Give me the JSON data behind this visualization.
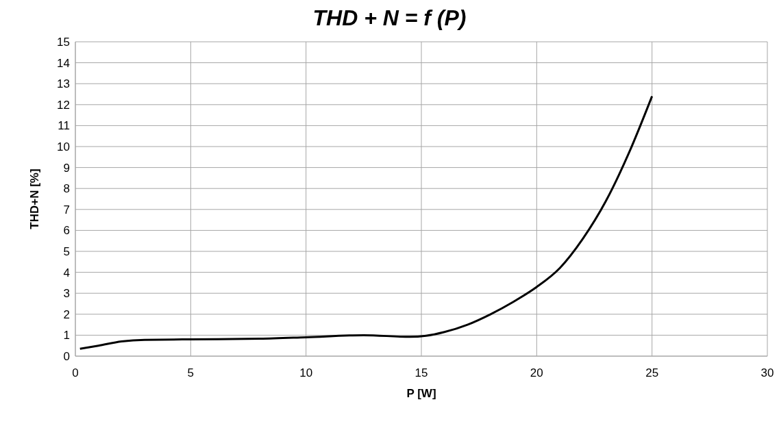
{
  "chart_data": {
    "type": "line",
    "title": "THD + N = f (P)",
    "xlabel": "P [W]",
    "ylabel": "THD+N [%]",
    "x": [
      0.2,
      1,
      2,
      3,
      5,
      8,
      10,
      12.5,
      14.5,
      15.2,
      16,
      17,
      18,
      19,
      20,
      21,
      22,
      23,
      24,
      25
    ],
    "series": [
      {
        "color": "#000000",
        "values": [
          0.35,
          0.5,
          0.7,
          0.78,
          0.8,
          0.83,
          0.9,
          1.0,
          0.92,
          0.97,
          1.15,
          1.5,
          2.0,
          2.6,
          3.3,
          4.2,
          5.6,
          7.4,
          9.7,
          12.4
        ]
      }
    ],
    "xlim": [
      0,
      30
    ],
    "xticks": [
      0,
      5,
      10,
      15,
      20,
      25,
      30
    ],
    "ylim": [
      0,
      15
    ],
    "yticks": [
      0,
      1,
      2,
      3,
      4,
      5,
      6,
      7,
      8,
      9,
      10,
      11,
      12,
      13,
      14,
      15
    ],
    "grid": true,
    "marker": "none",
    "line_style": "solid"
  }
}
